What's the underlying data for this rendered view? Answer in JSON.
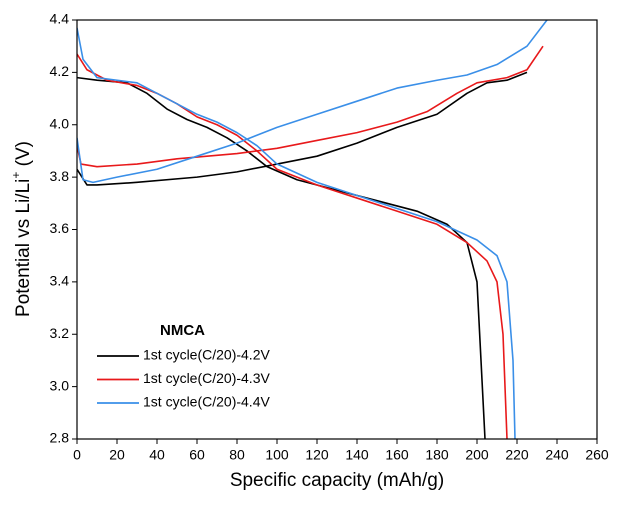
{
  "chart_data": {
    "type": "line",
    "xlabel": "Specific capacity (mAh/g)",
    "ylabel_parts": [
      "Potential vs Li/Li",
      "+",
      " (V)"
    ],
    "legend_title": "NMCA",
    "legend": "lower left",
    "xlim": [
      0,
      260
    ],
    "xticks": [
      0,
      20,
      40,
      60,
      80,
      100,
      120,
      140,
      160,
      180,
      200,
      220,
      240,
      260
    ],
    "ylim": [
      2.8,
      4.4
    ],
    "yticks": [
      2.8,
      {
        "value": 3.0,
        "label": "3.0"
      },
      3.2,
      3.4,
      3.6,
      3.8,
      {
        "value": 4.0,
        "label": "4.0"
      },
      4.2,
      4.4
    ],
    "series": [
      {
        "name": "1st cycle(C/20)-4.2V",
        "color": "#000000",
        "x": [
          0,
          5,
          10,
          30,
          60,
          80,
          100,
          120,
          140,
          160,
          180,
          195,
          205,
          215,
          225,
          null,
          0,
          10,
          25,
          35,
          45,
          55,
          65,
          75,
          85,
          95,
          110,
          130,
          150,
          170,
          185,
          195,
          200,
          202,
          204
        ],
        "values": [
          3.83,
          3.77,
          3.77,
          3.78,
          3.8,
          3.82,
          3.85,
          3.88,
          3.93,
          3.99,
          4.04,
          4.12,
          4.16,
          4.17,
          4.2,
          null,
          4.18,
          4.17,
          4.16,
          4.12,
          4.06,
          4.02,
          3.99,
          3.95,
          3.9,
          3.84,
          3.79,
          3.75,
          3.71,
          3.67,
          3.62,
          3.55,
          3.4,
          3.1,
          2.8
        ]
      },
      {
        "name": "1st cycle(C/20)-4.3V",
        "color": "#e8191b",
        "x": [
          0,
          2,
          10,
          30,
          50,
          80,
          100,
          120,
          140,
          160,
          175,
          190,
          200,
          215,
          225,
          233,
          null,
          0,
          5,
          15,
          30,
          40,
          50,
          60,
          70,
          80,
          90,
          100,
          120,
          140,
          160,
          180,
          195,
          205,
          210,
          213,
          215
        ],
        "values": [
          3.92,
          3.85,
          3.84,
          3.85,
          3.87,
          3.89,
          3.91,
          3.94,
          3.97,
          4.01,
          4.05,
          4.12,
          4.16,
          4.18,
          4.21,
          4.3,
          null,
          4.27,
          4.21,
          4.17,
          4.15,
          4.12,
          4.08,
          4.03,
          4.0,
          3.96,
          3.9,
          3.83,
          3.77,
          3.72,
          3.67,
          3.62,
          3.55,
          3.48,
          3.4,
          3.2,
          2.8
        ]
      },
      {
        "name": "1st cycle(C/20)-4.4V",
        "color": "#3a8fe8",
        "x": [
          0,
          3,
          8,
          20,
          40,
          60,
          80,
          100,
          120,
          140,
          160,
          180,
          195,
          210,
          225,
          235,
          null,
          0,
          3,
          10,
          30,
          40,
          50,
          60,
          70,
          80,
          90,
          100,
          120,
          140,
          160,
          180,
          200,
          210,
          215,
          218,
          219
        ],
        "values": [
          3.95,
          3.79,
          3.78,
          3.8,
          3.83,
          3.88,
          3.93,
          3.99,
          4.04,
          4.09,
          4.14,
          4.17,
          4.19,
          4.23,
          4.3,
          4.4,
          null,
          4.37,
          4.25,
          4.18,
          4.16,
          4.12,
          4.08,
          4.04,
          4.01,
          3.97,
          3.92,
          3.85,
          3.78,
          3.73,
          3.68,
          3.63,
          3.56,
          3.5,
          3.4,
          3.1,
          2.8
        ]
      }
    ]
  }
}
